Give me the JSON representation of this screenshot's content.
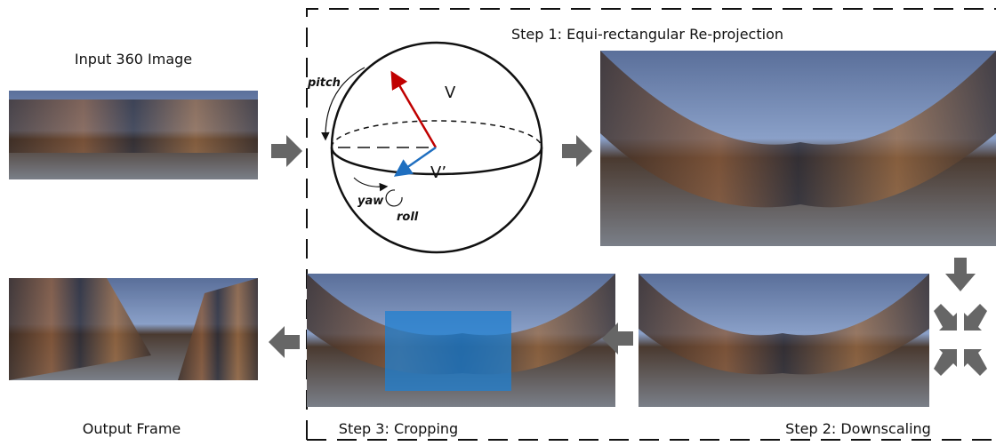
{
  "labels": {
    "input": "Input 360 Image",
    "step1": "Step 1: Equi-rectangular Re-projection",
    "step2": "Step 2: Downscaling",
    "step3": "Step 3: Cropping",
    "output": "Output Frame"
  },
  "sphere": {
    "pitch": "pitch",
    "v": "V",
    "v_prime": "V’",
    "yaw": "yaw",
    "roll": "roll"
  }
}
